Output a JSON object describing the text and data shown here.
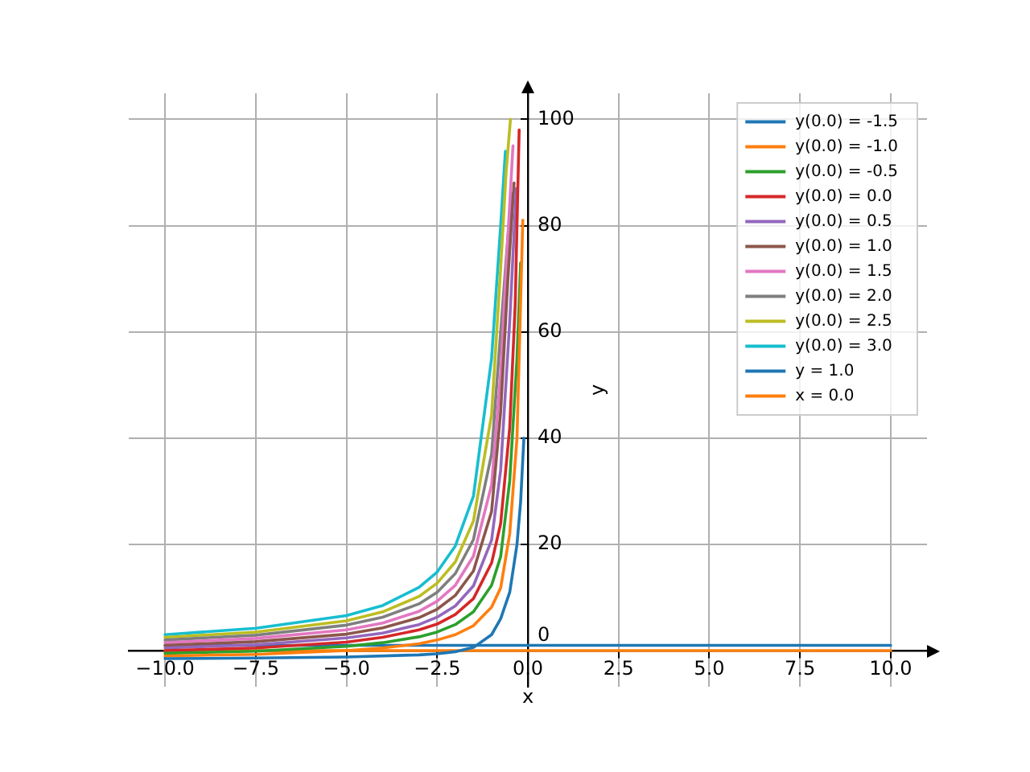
{
  "chart_data": {
    "type": "line",
    "xlabel": "x",
    "ylabel": "y",
    "xlim": [
      -11,
      11
    ],
    "ylim": [
      -6.8,
      104.9
    ],
    "xticks": [
      {
        "value": -10,
        "label": "−10.0"
      },
      {
        "value": -7.5,
        "label": "−7.5"
      },
      {
        "value": -5,
        "label": "−5.0"
      },
      {
        "value": -2.5,
        "label": "−2.5"
      },
      {
        "value": 0,
        "label": "0.0"
      },
      {
        "value": 2.5,
        "label": "2.5"
      },
      {
        "value": 5,
        "label": "5.0"
      },
      {
        "value": 7.5,
        "label": "7.5"
      },
      {
        "value": 10,
        "label": "10.0"
      }
    ],
    "yticks": [
      0,
      20,
      40,
      60,
      80,
      100
    ],
    "grid": true,
    "legend": "top right",
    "marker": "none",
    "line_style": "solid",
    "series": [
      {
        "name": "y(0.0) = -1.5",
        "color": "#1f77b4",
        "x": [
          -10,
          -7.5,
          -5,
          -3,
          -2.5,
          -2,
          -1.5,
          -1,
          -0.75,
          -0.5,
          -0.3,
          -0.2,
          -0.11
        ],
        "values": [
          -1.5,
          -1.4,
          -1.2,
          -0.8,
          -0.6,
          -0.2,
          0.6,
          3,
          6,
          11,
          20,
          28,
          40
        ]
      },
      {
        "name": "y(0.0) = -1.0",
        "color": "#ff7f0e",
        "x": [
          -10,
          -7.5,
          -5,
          -4,
          -3,
          -2.5,
          -2,
          -1.5,
          -1,
          -0.75,
          -0.5,
          -0.3,
          -0.14
        ],
        "values": [
          -1,
          -0.7,
          0,
          0.5,
          1.3,
          2,
          3,
          4.7,
          8.2,
          11.8,
          22,
          40,
          81
        ]
      },
      {
        "name": "y(0.0) = -0.5",
        "color": "#2ca02c",
        "x": [
          -10,
          -7.5,
          -5,
          -4,
          -3,
          -2.5,
          -2,
          -1.5,
          -1,
          -0.75,
          -0.5,
          -0.3,
          -0.2
        ],
        "values": [
          -0.5,
          -0.1,
          0.8,
          1.5,
          2.6,
          3.5,
          4.9,
          7.3,
          12.3,
          17.7,
          32,
          55,
          73
        ]
      },
      {
        "name": "y(0.0) = 0.0",
        "color": "#d62728",
        "x": [
          -10,
          -7.5,
          -5,
          -4,
          -3,
          -2.5,
          -2,
          -1.5,
          -1,
          -0.75,
          -0.5,
          -0.35,
          -0.24
        ],
        "values": [
          0,
          0.5,
          1.6,
          2.5,
          3.9,
          5,
          6.8,
          9.8,
          16.5,
          23.9,
          42,
          65,
          98
        ]
      },
      {
        "name": "y(0.0) = 0.5",
        "color": "#9467bd",
        "x": [
          -10,
          -7.5,
          -5,
          -4,
          -3,
          -2.5,
          -2,
          -1.5,
          -1,
          -0.75,
          -0.5,
          -0.32
        ],
        "values": [
          0.5,
          1.1,
          2.4,
          3.3,
          4.9,
          6.3,
          8.4,
          12.2,
          20.8,
          34,
          62,
          87
        ]
      },
      {
        "name": "y(0.0) = 1.0",
        "color": "#8c564b",
        "x": [
          -10,
          -7.5,
          -5,
          -4,
          -3,
          -2.5,
          -2,
          -1.5,
          -1,
          -0.75,
          -0.55,
          -0.38
        ],
        "values": [
          1,
          1.7,
          3.1,
          4.3,
          6.2,
          7.8,
          10.4,
          15,
          26.2,
          45,
          70,
          88
        ]
      },
      {
        "name": "y(0.0) = 1.5",
        "color": "#e377c2",
        "x": [
          -10,
          -7.5,
          -5,
          -4,
          -3,
          -2.5,
          -2,
          -1.5,
          -1,
          -0.75,
          -0.55,
          -0.41
        ],
        "values": [
          1.5,
          2.3,
          3.9,
          5.2,
          7.4,
          9.3,
          12.3,
          17.8,
          31.2,
          52,
          78,
          95
        ]
      },
      {
        "name": "y(0.0) = 2.0",
        "color": "#7f7f7f",
        "x": [
          -10,
          -7.5,
          -5,
          -4,
          -3,
          -2.5,
          -2,
          -1.5,
          -1,
          -0.75,
          -0.55,
          -0.43
        ],
        "values": [
          2,
          2.9,
          4.8,
          6.3,
          8.8,
          11,
          14.5,
          20.9,
          37,
          60,
          78,
          86
        ]
      },
      {
        "name": "y(0.0) = 2.5",
        "color": "#bcbd22",
        "x": [
          -10,
          -7.5,
          -5,
          -4,
          -3,
          -2.5,
          -2,
          -1.5,
          -1,
          -0.75,
          -0.6,
          -0.48
        ],
        "values": [
          2.5,
          3.5,
          5.6,
          7.3,
          10.2,
          12.7,
          16.7,
          24.4,
          44.4,
          72,
          90,
          100
        ]
      },
      {
        "name": "y(0.0) = 3.0",
        "color": "#17becf",
        "x": [
          -10,
          -7.5,
          -5,
          -4,
          -3,
          -2.5,
          -2,
          -1.5,
          -1,
          -0.75,
          -0.62
        ],
        "values": [
          3,
          4.2,
          6.6,
          8.5,
          11.9,
          14.8,
          19.7,
          29.1,
          55,
          80,
          94
        ]
      },
      {
        "name": "y = 1.0",
        "color": "#1f77b4",
        "x": [
          -10,
          10
        ],
        "values": [
          1,
          1
        ]
      },
      {
        "name": "x = 0.0",
        "color": "#ff7f0e",
        "x": [
          -10,
          10
        ],
        "values": [
          0,
          0
        ]
      }
    ]
  }
}
